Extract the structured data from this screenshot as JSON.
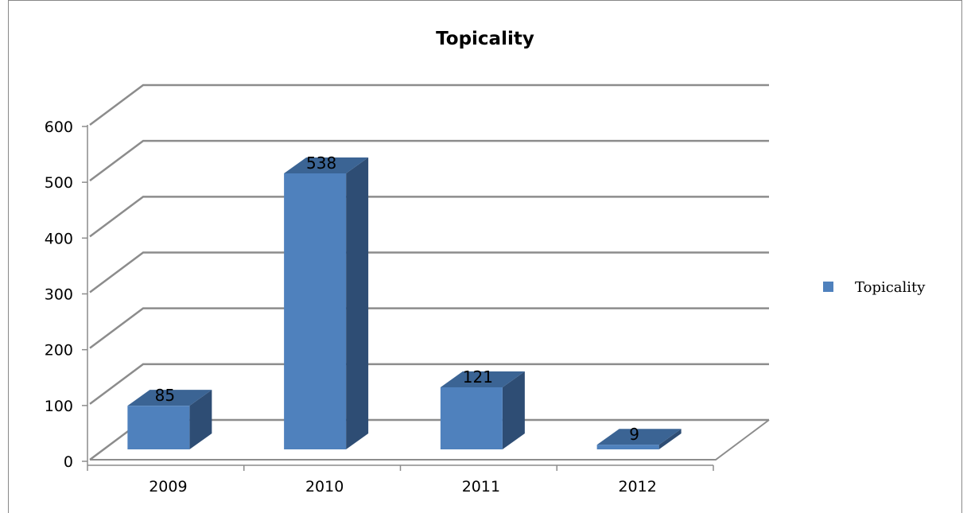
{
  "chart_data": {
    "type": "bar",
    "title": "Topicality",
    "categories": [
      "2009",
      "2010",
      "2011",
      "2012"
    ],
    "series": [
      {
        "name": "Topicality",
        "values": [
          85,
          538,
          121,
          9
        ]
      }
    ],
    "yticks": [
      "0",
      "100",
      "200",
      "300",
      "400",
      "500",
      "600"
    ],
    "ylim": [
      0,
      600
    ],
    "grid": true,
    "legend": "right",
    "style": "3d-column",
    "colors": {
      "front": "#4F81BD",
      "side": "#2E4D74",
      "top": "#3B6494",
      "grid": "#8C8C8C"
    }
  }
}
